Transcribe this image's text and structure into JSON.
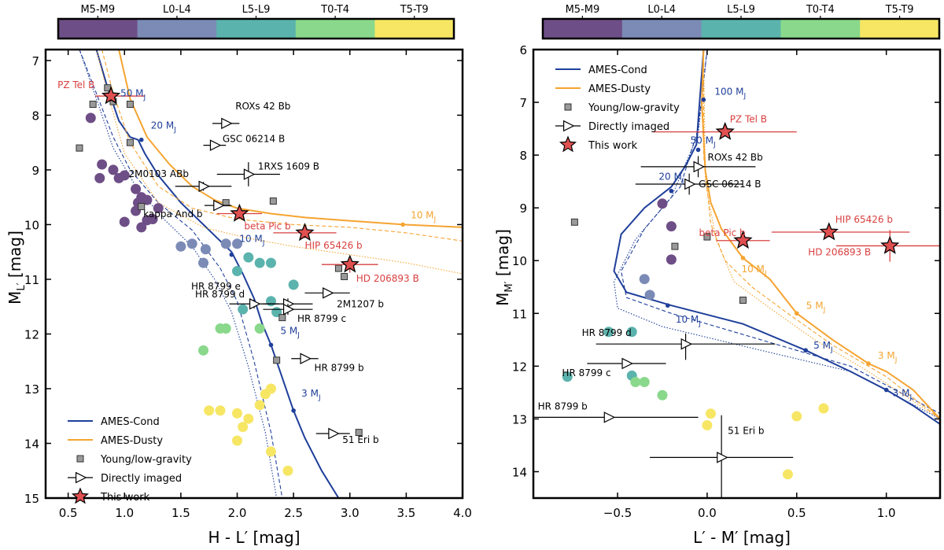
{
  "chart_data": [
    {
      "type": "scatter",
      "title": "",
      "colorbar": {
        "labels": [
          "M5-M9",
          "L0-L4",
          "L5-L9",
          "T0-T4",
          "T5-T9"
        ],
        "colors": [
          "#6e4e86",
          "#7b8bb6",
          "#5bb3ad",
          "#89d88b",
          "#f6e664"
        ]
      },
      "xlabel": "H - L′ [mag]",
      "ylabel": "M_L′ [mag]",
      "xlim": [
        0.3,
        4.0
      ],
      "ylim": [
        15,
        6.8
      ],
      "xticks": [
        "0.5",
        "1.0",
        "1.5",
        "2.0",
        "2.5",
        "3.0",
        "3.5",
        "4.0"
      ],
      "yticks": [
        "7",
        "8",
        "9",
        "10",
        "11",
        "12",
        "13",
        "14",
        "15"
      ],
      "legend": {
        "position": "lower-left",
        "entries": [
          "AMES-Cond",
          "AMES-Dusty",
          "Young/low-gravity",
          "Directly imaged",
          "This work"
        ]
      },
      "series": [
        {
          "name": "AMES-Cond",
          "style": "solid",
          "color": "#1f3f9a",
          "x": [
            0.75,
            0.85,
            0.95,
            1.05,
            1.12,
            1.18,
            1.3,
            1.5,
            1.7,
            1.85,
            1.95,
            2.05,
            2.15,
            2.22,
            2.3,
            2.4,
            2.5,
            2.6,
            2.75,
            2.9
          ],
          "y": [
            6.8,
            7.5,
            8.1,
            8.4,
            8.45,
            8.7,
            9.1,
            9.6,
            10.0,
            10.3,
            10.5,
            10.9,
            11.35,
            11.8,
            12.2,
            12.8,
            13.4,
            13.9,
            14.5,
            15.0
          ]
        },
        {
          "name": "AMES-Cond-dashed",
          "style": "dashed",
          "color": "#1f3f9a",
          "x": [
            0.6,
            0.75,
            0.9,
            1.05,
            1.3,
            1.6,
            1.85,
            2.0,
            2.15,
            2.3,
            2.4
          ],
          "y": [
            6.8,
            7.6,
            8.4,
            9.0,
            9.6,
            10.1,
            10.8,
            11.4,
            12.5,
            13.8,
            15.0
          ]
        },
        {
          "name": "AMES-Cond-dotted",
          "style": "dotted",
          "color": "#1f3f9a",
          "x": [
            0.6,
            0.75,
            0.9,
            1.1,
            1.35,
            1.6,
            1.8,
            1.95,
            2.1,
            2.25,
            2.35
          ],
          "y": [
            6.8,
            7.7,
            8.6,
            9.3,
            9.9,
            10.4,
            11.0,
            11.6,
            12.6,
            13.8,
            15.0
          ]
        },
        {
          "name": "AMES-Dusty",
          "style": "solid",
          "color": "#f5a431",
          "x": [
            0.95,
            1.05,
            1.2,
            1.4,
            1.6,
            1.8,
            2.0,
            2.3,
            2.6,
            3.0,
            3.47,
            3.8,
            4.0
          ],
          "y": [
            6.8,
            7.7,
            8.4,
            8.9,
            9.3,
            9.55,
            9.7,
            9.8,
            9.87,
            9.93,
            10.0,
            10.03,
            10.05
          ]
        },
        {
          "name": "AMES-Dusty-dashed",
          "style": "dashed",
          "color": "#f5a431",
          "x": [
            0.8,
            0.9,
            1.05,
            1.3,
            1.6,
            2.0,
            2.5,
            3.0,
            3.5,
            4.0
          ],
          "y": [
            6.8,
            7.6,
            8.5,
            9.3,
            9.7,
            9.9,
            10.0,
            10.05,
            10.15,
            10.3
          ]
        },
        {
          "name": "AMES-Dusty-dotted",
          "style": "dotted",
          "color": "#f5a431",
          "x": [
            0.75,
            0.85,
            1.0,
            1.3,
            1.7,
            2.1,
            2.5,
            3.0,
            3.5,
            4.0
          ],
          "y": [
            6.8,
            7.6,
            8.7,
            9.6,
            10.05,
            10.25,
            10.4,
            10.55,
            10.7,
            10.9
          ]
        },
        {
          "name": "Field dwarfs",
          "x": [
            0.7,
            0.8,
            0.78,
            0.9,
            0.95,
            1.0,
            1.1,
            1.15,
            1.12,
            1.2,
            1.1,
            1.25,
            1.3,
            1.2,
            1.0,
            1.15,
            1.6,
            1.72,
            1.9,
            1.7,
            1.5,
            2.0,
            2.1,
            2.2,
            2.3,
            2.5,
            2.0,
            2.05,
            1.85,
            2.3,
            2.35,
            1.9,
            2.2,
            1.7,
            1.85,
            2.0,
            2.2,
            2.1,
            2.25,
            2.3,
            1.75,
            2.0,
            2.05,
            2.3,
            2.45
          ],
          "y": [
            8.05,
            8.9,
            9.15,
            9.0,
            9.15,
            9.1,
            9.35,
            9.5,
            9.6,
            9.55,
            9.75,
            9.9,
            9.7,
            9.92,
            9.95,
            10.05,
            10.35,
            10.45,
            10.35,
            10.7,
            10.4,
            10.35,
            10.6,
            10.7,
            10.7,
            11.1,
            10.85,
            11.55,
            11.9,
            11.4,
            11.6,
            11.9,
            11.9,
            12.3,
            13.4,
            13.45,
            13.3,
            13.55,
            13.1,
            13.0,
            13.4,
            13.95,
            13.7,
            14.15,
            14.5
          ],
          "categories": [
            0,
            0,
            0,
            0,
            0,
            0,
            0,
            0,
            0,
            0,
            0,
            0,
            0,
            0,
            0,
            0,
            1,
            1,
            1,
            1,
            1,
            1,
            2,
            2,
            2,
            2,
            2,
            2,
            3,
            2,
            2,
            3,
            3,
            3,
            4,
            4,
            4,
            4,
            4,
            4,
            4,
            4,
            4,
            4,
            4
          ]
        },
        {
          "name": "Young/low-gravity",
          "x": [
            0.6,
            0.72,
            0.85,
            0.9,
            1.05,
            1.05,
            1.15,
            1.9,
            2.32,
            2.9,
            2.95,
            2.4,
            3.08,
            2.35
          ],
          "y": [
            8.6,
            7.8,
            7.5,
            7.75,
            7.8,
            8.5,
            9.67,
            9.6,
            9.57,
            10.8,
            10.95,
            11.7,
            13.8,
            12.48
          ]
        },
        {
          "name": "This work",
          "x": [
            0.88,
            2.02,
            2.6,
            3.0
          ],
          "y": [
            7.65,
            9.8,
            10.15,
            10.73
          ]
        }
      ],
      "mass_markers_cond": [
        {
          "label": "50 M",
          "sub": "J",
          "x": 0.88,
          "y": 7.6
        },
        {
          "label": "20 M",
          "sub": "J",
          "x": 1.15,
          "y": 8.45
        },
        {
          "label": "10 M",
          "sub": "J",
          "x": 1.95,
          "y": 10.55
        },
        {
          "label": "5 M",
          "sub": "J",
          "x": 2.3,
          "y": 12.2
        },
        {
          "label": "3 M",
          "sub": "J",
          "x": 2.5,
          "y": 13.4
        }
      ],
      "mass_markers_dusty": [
        {
          "label": "10 M",
          "sub": "J",
          "x": 3.47,
          "y": 10.0
        }
      ],
      "directly_imaged": [
        {
          "name": "ROXs 42 Bb",
          "x": 1.9,
          "y": 8.15
        },
        {
          "name": "GSC 06214 B",
          "x": 1.8,
          "y": 8.55
        },
        {
          "name": "1RXS 1609 B",
          "x": 2.1,
          "y": 9.08
        },
        {
          "name": "2M0103 ABb",
          "x": 1.7,
          "y": 9.3
        },
        {
          "name": "kappa And b",
          "x": 1.83,
          "y": 9.65
        },
        {
          "name": "HR 8799 e",
          "x": 2.15,
          "y": 11.45
        },
        {
          "name": "2M1207 b",
          "x": 2.8,
          "y": 11.25
        },
        {
          "name": "HR 8799 d",
          "x": 2.45,
          "y": 11.45
        },
        {
          "name": "HR 8799 c",
          "x": 2.45,
          "y": 11.55
        },
        {
          "name": "HR 8799 b",
          "x": 2.6,
          "y": 12.45
        },
        {
          "name": "51 Eri b",
          "x": 2.85,
          "y": 13.82
        }
      ],
      "this_work_labels": [
        "PZ Tel B",
        "beta Pic b",
        "HIP 65426 b",
        "HD 206893 B"
      ]
    },
    {
      "type": "scatter",
      "title": "",
      "colorbar": {
        "labels": [
          "M5-M9",
          "L0-L4",
          "L5-L9",
          "T0-T4",
          "T5-T9"
        ],
        "colors": [
          "#6e4e86",
          "#7b8bb6",
          "#5bb3ad",
          "#89d88b",
          "#f6e664"
        ]
      },
      "xlabel": "L′ - M′ [mag]",
      "ylabel": "M_M′ [mag]",
      "xlim": [
        -0.97,
        1.3
      ],
      "ylim": [
        14.5,
        6.0
      ],
      "xticks": [
        "−0.5",
        "0.0",
        "0.5",
        "1.0"
      ],
      "yticks": [
        "6",
        "7",
        "8",
        "9",
        "10",
        "11",
        "12",
        "13",
        "14"
      ],
      "legend": {
        "position": "top-left",
        "entries": [
          "AMES-Cond",
          "AMES-Dusty",
          "Young/low-gravity",
          "Directly imaged",
          "This work"
        ]
      },
      "series": [
        {
          "name": "AMES-Cond",
          "style": "solid",
          "color": "#1f3f9a",
          "x": [
            -0.02,
            -0.04,
            -0.06,
            -0.12,
            -0.2,
            -0.35,
            -0.48,
            -0.52,
            -0.45,
            -0.2,
            0.2,
            0.55,
            0.8,
            1.0,
            1.15,
            1.3
          ],
          "y": [
            6.0,
            6.9,
            7.8,
            8.2,
            8.6,
            9.0,
            9.5,
            10.2,
            10.6,
            10.85,
            11.2,
            11.7,
            12.1,
            12.45,
            12.75,
            13.1
          ]
        },
        {
          "name": "AMES-Cond-dashed",
          "style": "dashed",
          "color": "#1f3f9a",
          "x": [
            0.0,
            -0.05,
            -0.15,
            -0.35,
            -0.48,
            -0.45,
            -0.2,
            0.3,
            0.8,
            1.3
          ],
          "y": [
            6.0,
            7.5,
            8.6,
            9.4,
            10.2,
            10.7,
            11.0,
            11.5,
            12.0,
            12.9
          ]
        },
        {
          "name": "AMES-Cond-dotted",
          "style": "dotted",
          "color": "#1f3f9a",
          "x": [
            0.0,
            -0.05,
            -0.2,
            -0.4,
            -0.52,
            -0.5,
            -0.25,
            0.3,
            0.8,
            1.3
          ],
          "y": [
            6.0,
            7.6,
            8.8,
            9.6,
            10.4,
            10.9,
            11.25,
            11.7,
            12.1,
            13.0
          ]
        },
        {
          "name": "AMES-Dusty",
          "style": "solid",
          "color": "#f5a431",
          "x": [
            -0.02,
            -0.03,
            -0.01,
            0.02,
            0.08,
            0.2,
            0.35,
            0.5,
            0.7,
            0.9,
            1.0,
            1.15,
            1.3
          ],
          "y": [
            6.0,
            7.0,
            8.3,
            8.9,
            9.4,
            9.95,
            10.35,
            11.0,
            11.5,
            11.95,
            12.1,
            12.45,
            13.0
          ]
        },
        {
          "name": "AMES-Dusty-dashed",
          "style": "dashed",
          "color": "#f5a431",
          "x": [
            -0.02,
            -0.02,
            0.02,
            0.1,
            0.25,
            0.45,
            0.7,
            1.0,
            1.3
          ],
          "y": [
            6.0,
            8.0,
            9.3,
            10.0,
            10.5,
            11.0,
            11.6,
            12.2,
            13.0
          ]
        },
        {
          "name": "AMES-Dusty-dotted",
          "style": "dotted",
          "color": "#f5a431",
          "x": [
            -0.02,
            -0.01,
            0.05,
            0.15,
            0.35,
            0.6,
            0.9,
            1.3
          ],
          "y": [
            6.0,
            8.5,
            9.6,
            10.4,
            10.9,
            11.5,
            12.1,
            13.0
          ]
        },
        {
          "name": "Field dwarfs",
          "x": [
            -0.2,
            -0.25,
            -0.2,
            -0.35,
            -0.32,
            -0.78,
            -0.42,
            -0.55,
            -0.42,
            -0.35,
            -0.25,
            -0.4,
            0.02,
            0.0,
            0.5,
            0.65,
            0.45
          ],
          "y": [
            9.35,
            8.92,
            9.98,
            10.35,
            10.65,
            12.2,
            12.18,
            11.35,
            11.35,
            12.3,
            12.55,
            12.3,
            12.9,
            13.12,
            12.95,
            12.8,
            14.05
          ],
          "categories": [
            0,
            0,
            0,
            1,
            1,
            2,
            2,
            2,
            2,
            3,
            3,
            3,
            4,
            4,
            4,
            4,
            4
          ]
        },
        {
          "name": "Young/low-gravity",
          "x": [
            -0.74,
            -0.18,
            0.0,
            0.2
          ],
          "y": [
            9.27,
            9.73,
            9.55,
            10.75
          ]
        },
        {
          "name": "This work",
          "x": [
            0.1,
            0.2,
            0.68,
            1.02
          ],
          "y": [
            7.56,
            9.62,
            9.46,
            9.72
          ]
        }
      ],
      "mass_markers_cond": [
        {
          "label": "100 M",
          "sub": "J",
          "x": -0.02,
          "y": 6.95
        },
        {
          "label": "50 M",
          "sub": "J",
          "x": -0.05,
          "y": 7.9
        },
        {
          "label": "20 M",
          "sub": "J",
          "x": -0.2,
          "y": 8.68
        },
        {
          "label": "10 M",
          "sub": "J",
          "x": -0.22,
          "y": 10.85
        },
        {
          "label": "5 M",
          "sub": "J",
          "x": 0.55,
          "y": 11.7
        },
        {
          "label": "3 M",
          "sub": "J",
          "x": 1.0,
          "y": 12.45
        }
      ],
      "mass_markers_dusty": [
        {
          "label": "10 M",
          "sub": "J",
          "x": 0.2,
          "y": 9.95
        },
        {
          "label": "5 M",
          "sub": "J",
          "x": 0.5,
          "y": 11.0
        },
        {
          "label": "3 M",
          "sub": "J",
          "x": 0.9,
          "y": 11.95
        }
      ],
      "directly_imaged": [
        {
          "name": "ROXs 42 Bb",
          "x": -0.05,
          "y": 8.22
        },
        {
          "name": "GSC 06214 B",
          "x": -0.1,
          "y": 8.55
        },
        {
          "name": "HR 8799 d",
          "x": -0.12,
          "y": 11.58
        },
        {
          "name": "HR 8799 c",
          "x": -0.45,
          "y": 11.95
        },
        {
          "name": "HR 8799 b",
          "x": -0.55,
          "y": 12.97
        },
        {
          "name": "51 Eri b",
          "x": 0.08,
          "y": 13.73
        }
      ],
      "this_work_labels": [
        "PZ Tel B",
        "beta Pic b",
        "HIP 65426 b",
        "HD 206893 B"
      ]
    }
  ]
}
